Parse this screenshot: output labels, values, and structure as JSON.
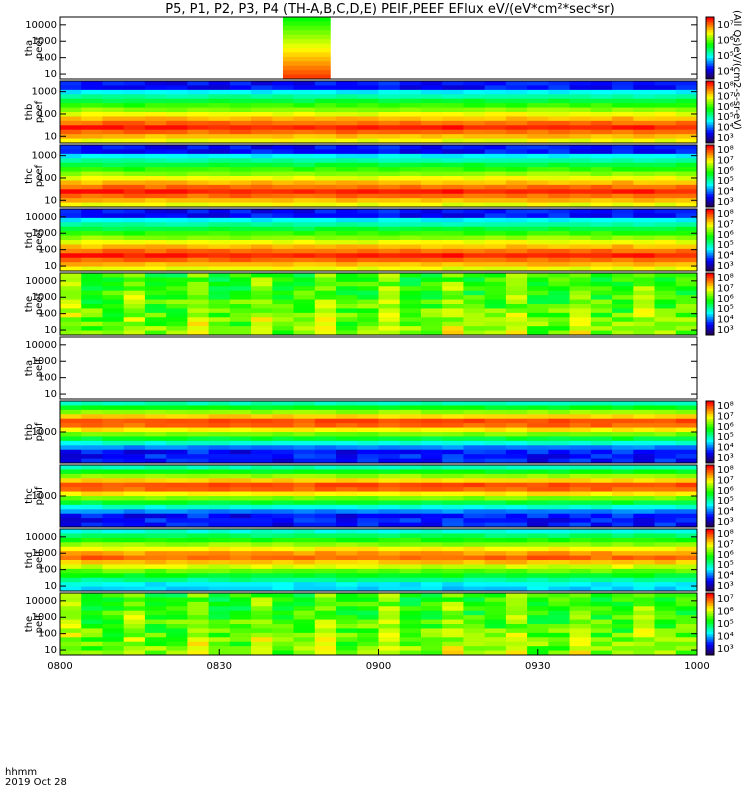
{
  "title": "P5, P1, P2, P3, P4 (TH-A,B,C,D,E) PEIF,PEEF EFlux eV/(eV*cm²*sec*sr)",
  "time_axis": {
    "name_label": "hhmm",
    "date_label": "2019 Oct 28",
    "ticks": [
      "0800",
      "0830",
      "0900",
      "0930",
      "1000"
    ]
  },
  "colorbar_title": "(All Qs)eV/(cm2-s-sr-eV)",
  "chart_data": {
    "type": "heatmap",
    "x_range": [
      "0800",
      "1000"
    ],
    "y_scale": "log",
    "palette": [
      "#200060",
      "#0000ff",
      "#00ffff",
      "#00ff00",
      "#ffff00",
      "#ff0000"
    ],
    "panels": [
      {
        "name": "tha peef",
        "line1": "tha",
        "line2": "peef",
        "ylim": [
          5,
          30000
        ],
        "yticks": [
          "10",
          "100",
          "1000",
          "10000"
        ],
        "colorbar_ticks": [
          "10⁴",
          "10⁵",
          "10⁶",
          "10⁷"
        ],
        "data": "burst"
      },
      {
        "name": "thb peef",
        "line1": "thb",
        "line2": "peef",
        "ylim": [
          5,
          3000
        ],
        "yticks": [
          "10",
          "100",
          "1000"
        ],
        "colorbar_ticks": [
          "10³",
          "10⁴",
          "10⁵",
          "10⁶",
          "10⁷",
          "10⁸"
        ],
        "data": "electron"
      },
      {
        "name": "thc peef",
        "line1": "thc",
        "line2": "peef",
        "ylim": [
          5,
          3000
        ],
        "yticks": [
          "10",
          "100",
          "1000"
        ],
        "colorbar_ticks": [
          "10³",
          "10⁴",
          "10⁵",
          "10⁶",
          "10⁷",
          "10⁸"
        ],
        "data": "electron"
      },
      {
        "name": "thd peef",
        "line1": "thd",
        "line2": "peef",
        "ylim": [
          5,
          30000
        ],
        "yticks": [
          "10",
          "100",
          "1000",
          "10000"
        ],
        "colorbar_ticks": [
          "10³",
          "10⁴",
          "10⁵",
          "10⁶",
          "10⁷",
          "10⁸"
        ],
        "data": "electron"
      },
      {
        "name": "the peef",
        "line1": "the",
        "line2": "peef",
        "ylim": [
          5,
          30000
        ],
        "yticks": [
          "10",
          "100",
          "1000",
          "10000"
        ],
        "colorbar_ticks": [
          "10³",
          "10⁴",
          "10⁵",
          "10⁶",
          "10⁷",
          "10⁸"
        ],
        "data": "sheath"
      },
      {
        "name": "tha peif",
        "line1": "tha",
        "line2": "peif",
        "ylim": [
          5,
          30000
        ],
        "yticks": [
          "10",
          "100",
          "1000",
          "10000"
        ],
        "colorbar_ticks": [],
        "data": "empty"
      },
      {
        "name": "thb peif",
        "line1": "thb",
        "line2": "peif",
        "ylim": [
          200,
          5000
        ],
        "yticks": [
          "1000"
        ],
        "colorbar_ticks": [
          "10³",
          "10⁴",
          "10⁵",
          "10⁶",
          "10⁷",
          "10⁸"
        ],
        "data": "ion"
      },
      {
        "name": "thc peif",
        "line1": "thc",
        "line2": "peif",
        "ylim": [
          200,
          5000
        ],
        "yticks": [
          "1000"
        ],
        "colorbar_ticks": [
          "10³",
          "10⁴",
          "10⁵",
          "10⁶",
          "10⁷",
          "10⁸"
        ],
        "data": "ion"
      },
      {
        "name": "thd peif",
        "line1": "thd",
        "line2": "peif",
        "ylim": [
          5,
          30000
        ],
        "yticks": [
          "10",
          "100",
          "1000",
          "10000"
        ],
        "colorbar_ticks": [
          "10³",
          "10⁴",
          "10⁵",
          "10⁶",
          "10⁷",
          "10⁸"
        ],
        "data": "hotion"
      },
      {
        "name": "the peif",
        "line1": "the",
        "line2": "peif",
        "ylim": [
          5,
          30000
        ],
        "yticks": [
          "10",
          "100",
          "1000",
          "10000"
        ],
        "colorbar_ticks": [
          "10³",
          "10⁴",
          "10⁵",
          "10⁶",
          "10⁷"
        ],
        "data": "sheath"
      }
    ]
  }
}
